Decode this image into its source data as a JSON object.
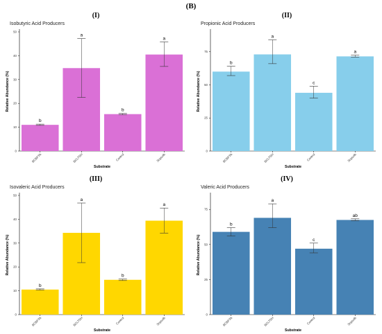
{
  "figure_label": "(B)",
  "chart_data": [
    {
      "type": "bar",
      "panel_label": "(I)",
      "title": "Isobutyric Acid Producers",
      "xlabel": "Substrate",
      "ylabel": "Relative Abundance (%)",
      "categories": [
        "BCBFTA",
        "BCLTSH",
        "Control",
        "Soysolb"
      ],
      "values": [
        11,
        34.8,
        15.5,
        40.5
      ],
      "error_upper": [
        11.3,
        47.2,
        15.8,
        45.8
      ],
      "error_lower": [
        10.8,
        22.5,
        15.2,
        35.5
      ],
      "significance": [
        "b",
        "a",
        "b",
        "a"
      ],
      "ylim": [
        0,
        50
      ],
      "yticks": [
        0,
        10,
        20,
        30,
        40,
        50
      ],
      "color": "#DA70D6"
    },
    {
      "type": "bar",
      "panel_label": "(II)",
      "title": "Propionic Acid Producers",
      "xlabel": "Substrate",
      "ylabel": "Relative Abundance (%)",
      "categories": [
        "BCBFTA",
        "BCLTSH",
        "Control",
        "Soysolb"
      ],
      "values": [
        60,
        73,
        44,
        71.5
      ],
      "error_upper": [
        64,
        84,
        49,
        72.5
      ],
      "error_lower": [
        57,
        66,
        40,
        71.0
      ],
      "significance": [
        "b",
        "a",
        "c",
        "a"
      ],
      "ylim": [
        0,
        90
      ],
      "yticks": [
        0,
        25,
        50,
        75
      ],
      "color": "#87CEEB"
    },
    {
      "type": "bar",
      "panel_label": "(III)",
      "title": "Isovaleric Acid Producers",
      "xlabel": "Substrate",
      "ylabel": "Relative Abundance (%)",
      "categories": [
        "BCBFTA",
        "BCLTSH",
        "Control",
        "Soysolb"
      ],
      "values": [
        10.5,
        34.3,
        14.6,
        39.4
      ],
      "error_upper": [
        10.8,
        46.8,
        14.9,
        44.7
      ],
      "error_lower": [
        10.3,
        21.8,
        14.3,
        34.2
      ],
      "significance": [
        "b",
        "a",
        "b",
        "a"
      ],
      "ylim": [
        0,
        50
      ],
      "yticks": [
        0,
        10,
        20,
        30,
        40,
        50
      ],
      "color": "#FFD700"
    },
    {
      "type": "bar",
      "panel_label": "(IV)",
      "title": "Valeric Acid Producers",
      "xlabel": "Substrate",
      "ylabel": "Relative Abundance (%)",
      "categories": [
        "BCBFTA",
        "BCLTSH",
        "Control",
        "Soysolb"
      ],
      "values": [
        59,
        69,
        47,
        67.5
      ],
      "error_upper": [
        62,
        79,
        51,
        68.3
      ],
      "error_lower": [
        56,
        62,
        44,
        67.0
      ],
      "significance": [
        "b",
        "a",
        "c",
        "ab"
      ],
      "ylim": [
        0,
        85
      ],
      "yticks": [
        0,
        25,
        50,
        75
      ],
      "color": "#4682B4"
    }
  ]
}
